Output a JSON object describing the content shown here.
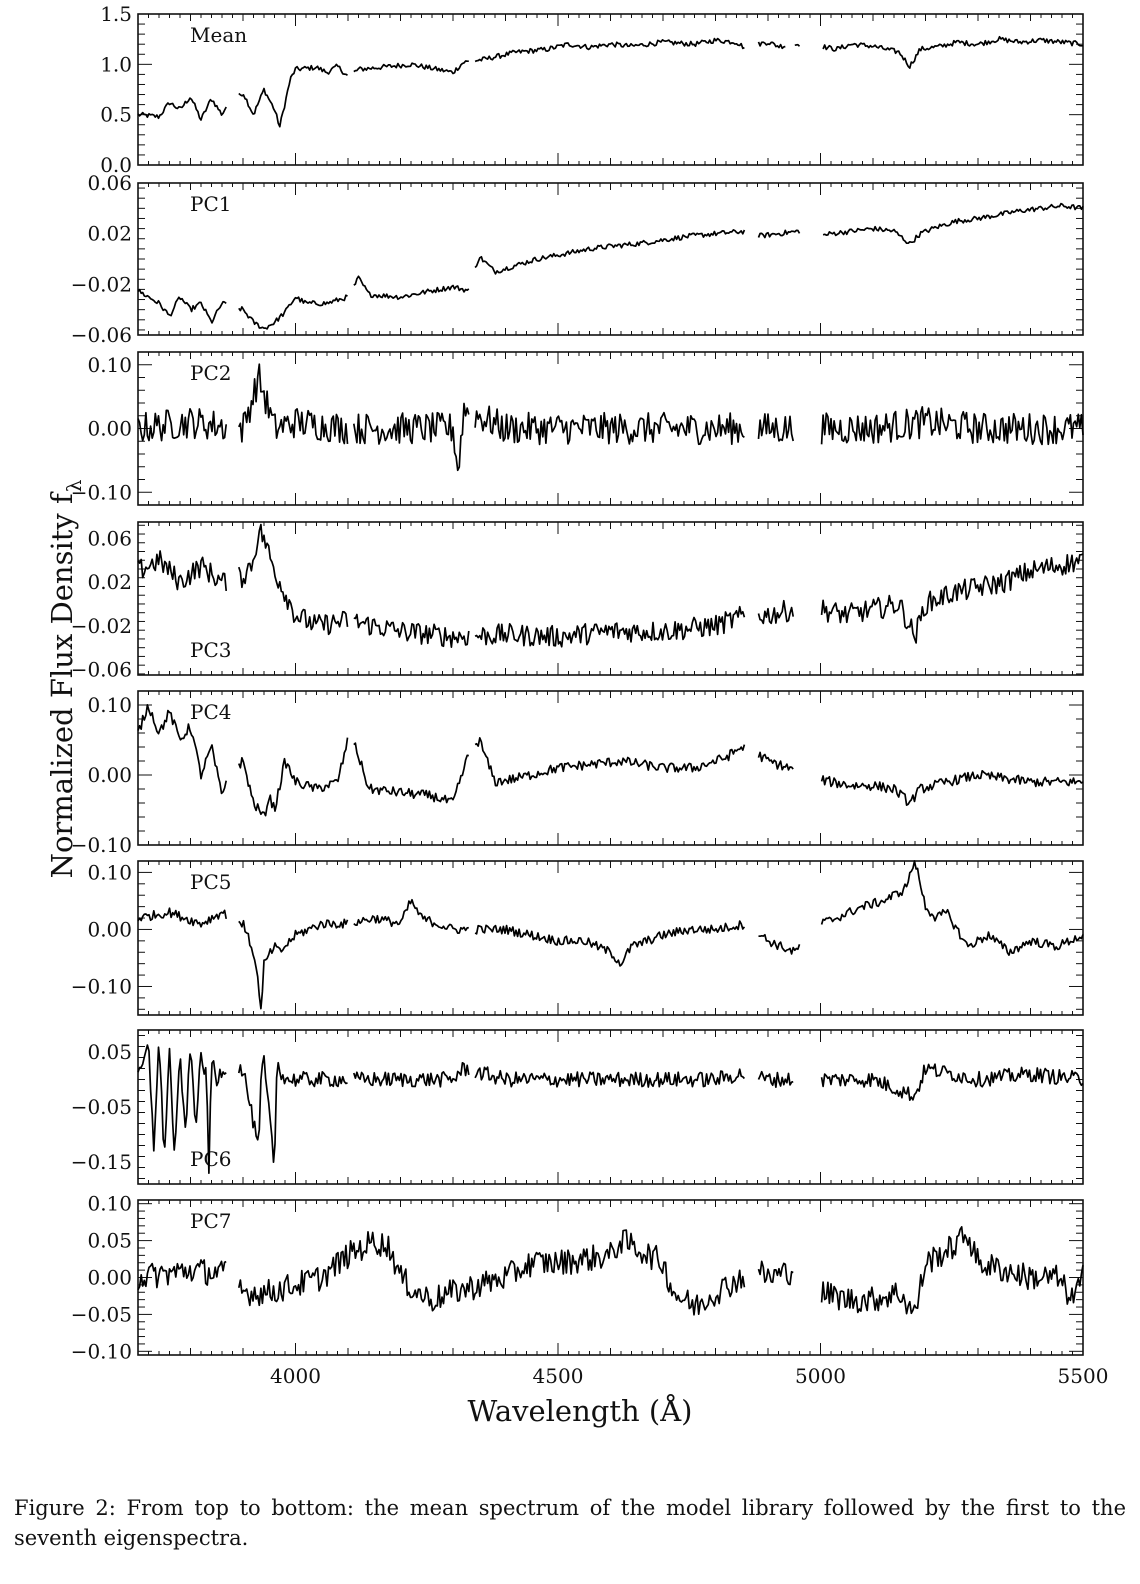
{
  "figure": {
    "xlabel": "Wavelength (Å)",
    "ylabel_main": "Normalized Flux Density f",
    "ylabel_sub": "λ",
    "x_ticks": [
      4000,
      4500,
      5000,
      5500
    ],
    "x_range": [
      3700,
      5500
    ],
    "caption": "Figure 2: From top to bottom: the mean spectrum of the model library followed by the first to the seventh eigenspectra."
  },
  "chart_data": [
    {
      "type": "line",
      "label": "Mean",
      "label_pos": "top-left",
      "ylim": [
        0.0,
        1.5
      ],
      "yticks": [
        {
          "v": 0.0,
          "t": "0.0"
        },
        {
          "v": 0.5,
          "t": "0.5"
        },
        {
          "v": 1.0,
          "t": "1.0"
        },
        {
          "v": 1.5,
          "t": "1.5"
        }
      ],
      "x": [
        3700,
        3740,
        3760,
        3780,
        3800,
        3820,
        3840,
        3860,
        3870,
        3900,
        3920,
        3940,
        3960,
        3970,
        3990,
        4000,
        4040,
        4060,
        4080,
        4100,
        4120,
        4180,
        4220,
        4300,
        4320,
        4360,
        4420,
        4480,
        4520,
        4560,
        4600,
        4640,
        4700,
        4760,
        4800,
        4840,
        4860,
        4880,
        4900,
        4920,
        4960,
        5000,
        5030,
        5060,
        5100,
        5150,
        5170,
        5190,
        5230,
        5260,
        5300,
        5340,
        5380,
        5420,
        5460,
        5500
      ],
      "y": [
        0.5,
        0.48,
        0.62,
        0.55,
        0.68,
        0.45,
        0.66,
        0.5,
        0.6,
        0.72,
        0.5,
        0.75,
        0.55,
        0.38,
        0.85,
        0.95,
        0.97,
        0.92,
        0.98,
        0.88,
        0.95,
        0.98,
        1.0,
        0.92,
        1.02,
        1.05,
        1.12,
        1.15,
        1.2,
        1.17,
        1.2,
        1.18,
        1.22,
        1.2,
        1.24,
        1.22,
        1.15,
        1.2,
        1.22,
        1.18,
        1.2,
        1.18,
        1.15,
        1.2,
        1.18,
        1.12,
        0.98,
        1.15,
        1.18,
        1.22,
        1.2,
        1.25,
        1.22,
        1.24,
        1.22,
        1.2
      ],
      "gaps": [
        [
          3870,
          3890
        ],
        [
          4100,
          4110
        ],
        [
          4330,
          4340
        ],
        [
          4855,
          4880
        ],
        [
          4935,
          4950
        ],
        [
          4960,
          5005
        ]
      ],
      "noise": 0.025
    },
    {
      "type": "line",
      "label": "PC1",
      "label_pos": "top-left",
      "ylim": [
        -0.06,
        0.06
      ],
      "yticks": [
        {
          "v": -0.06,
          "t": "−0.06"
        },
        {
          "v": -0.02,
          "t": "−0.02"
        },
        {
          "v": 0.02,
          "t": "0.02"
        },
        {
          "v": 0.06,
          "t": "0.06"
        }
      ],
      "x": [
        3700,
        3740,
        3760,
        3780,
        3800,
        3820,
        3840,
        3860,
        3900,
        3920,
        3940,
        3960,
        3980,
        4000,
        4020,
        4060,
        4100,
        4120,
        4140,
        4200,
        4260,
        4300,
        4330,
        4340,
        4350,
        4380,
        4420,
        4460,
        4500,
        4560,
        4600,
        4650,
        4700,
        4750,
        4800,
        4860,
        4880,
        4920,
        4960,
        5000,
        5020,
        5060,
        5100,
        5140,
        5170,
        5190,
        5220,
        5260,
        5300,
        5340,
        5380,
        5420,
        5460,
        5500
      ],
      "y": [
        -0.025,
        -0.035,
        -0.045,
        -0.03,
        -0.04,
        -0.035,
        -0.05,
        -0.035,
        -0.04,
        -0.05,
        -0.055,
        -0.05,
        -0.042,
        -0.03,
        -0.035,
        -0.035,
        -0.03,
        -0.015,
        -0.028,
        -0.03,
        -0.025,
        -0.022,
        -0.025,
        -0.01,
        0.002,
        -0.01,
        -0.005,
        0.0,
        0.003,
        0.008,
        0.01,
        0.012,
        0.015,
        0.018,
        0.02,
        0.022,
        0.018,
        0.02,
        0.022,
        0.018,
        0.02,
        0.022,
        0.024,
        0.022,
        0.012,
        0.02,
        0.025,
        0.03,
        0.032,
        0.035,
        0.038,
        0.04,
        0.042,
        0.04
      ],
      "gaps": [
        [
          3870,
          3890
        ],
        [
          4100,
          4110
        ],
        [
          4330,
          4340
        ],
        [
          4855,
          4880
        ],
        [
          4960,
          5005
        ]
      ],
      "noise": 0.002
    },
    {
      "type": "line",
      "label": "PC2",
      "label_pos": "top-left",
      "ylim": [
        -0.12,
        0.12
      ],
      "yticks": [
        {
          "v": -0.1,
          "t": "−0.10"
        },
        {
          "v": 0.0,
          "t": "0.00"
        },
        {
          "v": 0.1,
          "t": "0.10"
        }
      ],
      "x": [
        3700,
        3800,
        3900,
        3930,
        3960,
        4000,
        4100,
        4200,
        4300,
        4310,
        4320,
        4400,
        4500,
        4600,
        4700,
        4800,
        4860,
        4900,
        5000,
        5100,
        5200,
        5300,
        5400,
        5500
      ],
      "y": [
        0.0,
        0.01,
        0.0,
        0.08,
        0.0,
        0.01,
        0.0,
        0.0,
        0.0,
        -0.07,
        0.03,
        0.0,
        0.0,
        0.0,
        0.0,
        0.0,
        0.0,
        0.0,
        0.0,
        0.0,
        0.01,
        0.0,
        0.0,
        0.0
      ],
      "gaps": [
        [
          3870,
          3890
        ],
        [
          4100,
          4110
        ],
        [
          4330,
          4340
        ],
        [
          4855,
          4880
        ],
        [
          4950,
          5000
        ]
      ],
      "noise": 0.025
    },
    {
      "type": "line",
      "label": "PC3",
      "label_pos": "bottom-left",
      "ylim": [
        -0.065,
        0.075
      ],
      "yticks": [
        {
          "v": -0.06,
          "t": "−0.06"
        },
        {
          "v": -0.02,
          "t": "−0.02"
        },
        {
          "v": 0.02,
          "t": "0.02"
        },
        {
          "v": 0.06,
          "t": "0.06"
        }
      ],
      "x": [
        3700,
        3740,
        3780,
        3820,
        3860,
        3900,
        3920,
        3930,
        3940,
        3960,
        3980,
        4000,
        4040,
        4100,
        4200,
        4300,
        4400,
        4500,
        4600,
        4700,
        4800,
        4860,
        4900,
        4950,
        5000,
        5050,
        5100,
        5150,
        5180,
        5200,
        5250,
        5300,
        5350,
        5400,
        5450,
        5500
      ],
      "y": [
        0.03,
        0.04,
        0.02,
        0.035,
        0.02,
        0.025,
        0.04,
        0.068,
        0.06,
        0.03,
        0.01,
        -0.01,
        -0.02,
        -0.015,
        -0.025,
        -0.03,
        -0.028,
        -0.03,
        -0.025,
        -0.025,
        -0.02,
        -0.01,
        -0.01,
        -0.005,
        -0.005,
        -0.01,
        -0.005,
        0.0,
        -0.03,
        0.0,
        0.01,
        0.015,
        0.02,
        0.03,
        0.035,
        0.04
      ],
      "gaps": [
        [
          3870,
          3890
        ],
        [
          4100,
          4110
        ],
        [
          4330,
          4340
        ],
        [
          4855,
          4880
        ],
        [
          4950,
          5000
        ]
      ],
      "noise": 0.01
    },
    {
      "type": "line",
      "label": "PC4",
      "label_pos": "top-left",
      "ylim": [
        -0.1,
        0.12
      ],
      "yticks": [
        {
          "v": -0.1,
          "t": "−0.10"
        },
        {
          "v": 0.0,
          "t": "0.00"
        },
        {
          "v": 0.1,
          "t": "0.10"
        }
      ],
      "x": [
        3700,
        3720,
        3740,
        3760,
        3780,
        3800,
        3820,
        3840,
        3860,
        3870,
        3900,
        3920,
        3940,
        3950,
        3960,
        3980,
        4000,
        4040,
        4080,
        4100,
        4110,
        4140,
        4200,
        4260,
        4300,
        4330,
        4350,
        4380,
        4420,
        4500,
        4560,
        4620,
        4700,
        4760,
        4820,
        4850,
        4880,
        4900,
        4940,
        4960,
        5020,
        5060,
        5100,
        5140,
        5170,
        5190,
        5240,
        5300,
        5350,
        5400,
        5450,
        5500
      ],
      "y": [
        0.06,
        0.1,
        0.06,
        0.09,
        0.05,
        0.07,
        0.0,
        0.04,
        -0.03,
        0.0,
        0.02,
        -0.04,
        -0.06,
        -0.03,
        -0.05,
        0.02,
        -0.01,
        -0.02,
        -0.01,
        0.05,
        0.05,
        -0.02,
        -0.025,
        -0.03,
        -0.04,
        0.03,
        0.05,
        -0.01,
        -0.005,
        0.01,
        0.015,
        0.02,
        0.01,
        0.01,
        0.025,
        0.04,
        0.03,
        0.02,
        0.01,
        0.0,
        -0.01,
        -0.015,
        -0.015,
        -0.02,
        -0.04,
        -0.02,
        -0.01,
        0.0,
        -0.005,
        -0.01,
        -0.01,
        -0.01
      ],
      "gaps": [
        [
          3870,
          3890
        ],
        [
          4100,
          4110
        ],
        [
          4330,
          4340
        ],
        [
          4855,
          4880
        ],
        [
          4950,
          5000
        ]
      ],
      "noise": 0.007
    },
    {
      "type": "line",
      "label": "PC5",
      "label_pos": "top-left",
      "ylim": [
        -0.15,
        0.12
      ],
      "yticks": [
        {
          "v": -0.1,
          "t": "−0.10"
        },
        {
          "v": 0.0,
          "t": "0.00"
        },
        {
          "v": 0.1,
          "t": "0.10"
        }
      ],
      "x": [
        3700,
        3760,
        3820,
        3860,
        3900,
        3920,
        3930,
        3935,
        3940,
        3960,
        3970,
        4000,
        4050,
        4100,
        4150,
        4200,
        4220,
        4240,
        4300,
        4400,
        4450,
        4500,
        4550,
        4600,
        4620,
        4640,
        4700,
        4750,
        4800,
        4860,
        4900,
        4950,
        5000,
        5030,
        5080,
        5120,
        5160,
        5180,
        5200,
        5220,
        5240,
        5280,
        5320,
        5360,
        5400,
        5450,
        5500
      ],
      "y": [
        0.02,
        0.03,
        0.01,
        0.03,
        0.01,
        -0.04,
        -0.1,
        -0.15,
        -0.06,
        -0.03,
        -0.04,
        -0.01,
        0.01,
        0.01,
        0.02,
        0.01,
        0.05,
        0.02,
        0.0,
        0.0,
        -0.01,
        -0.02,
        -0.02,
        -0.04,
        -0.06,
        -0.03,
        -0.01,
        0.0,
        0.0,
        0.01,
        -0.02,
        -0.04,
        0.01,
        0.02,
        0.04,
        0.05,
        0.07,
        0.12,
        0.04,
        0.02,
        0.03,
        -0.03,
        -0.01,
        -0.04,
        -0.02,
        -0.03,
        -0.01
      ],
      "gaps": [
        [
          3870,
          3890
        ],
        [
          4100,
          4110
        ],
        [
          4330,
          4340
        ],
        [
          4855,
          4880
        ],
        [
          4960,
          5000
        ]
      ],
      "noise": 0.008
    },
    {
      "type": "line",
      "label": "PC6",
      "label_pos": "bottom-left",
      "ylim": [
        -0.19,
        0.09
      ],
      "yticks": [
        {
          "v": -0.15,
          "t": "−0.15"
        },
        {
          "v": -0.05,
          "t": "−0.05"
        },
        {
          "v": 0.05,
          "t": "0.05"
        }
      ],
      "x": [
        3700,
        3720,
        3730,
        3740,
        3750,
        3760,
        3770,
        3780,
        3790,
        3800,
        3810,
        3820,
        3830,
        3835,
        3840,
        3850,
        3860,
        3900,
        3930,
        3935,
        3940,
        3960,
        3965,
        3970,
        3980,
        4000,
        4100,
        4200,
        4300,
        4320,
        4400,
        4500,
        4600,
        4700,
        4800,
        4850,
        4900,
        5000,
        5100,
        5180,
        5200,
        5300,
        5400,
        5500
      ],
      "y": [
        0.0,
        0.06,
        -0.12,
        0.07,
        -0.14,
        0.05,
        -0.15,
        0.05,
        -0.1,
        0.06,
        -0.08,
        0.04,
        0.01,
        -0.17,
        0.04,
        0.0,
        0.02,
        0.02,
        -0.13,
        0.02,
        0.03,
        -0.16,
        0.04,
        0.02,
        0.0,
        0.0,
        0.0,
        0.0,
        0.0,
        0.02,
        0.0,
        0.0,
        0.0,
        0.0,
        0.0,
        0.01,
        0.0,
        0.0,
        0.0,
        -0.03,
        0.02,
        0.0,
        0.01,
        0.0
      ],
      "gaps": [
        [
          3870,
          3890
        ],
        [
          4100,
          4110
        ],
        [
          4330,
          4340
        ],
        [
          4855,
          4880
        ],
        [
          4950,
          5000
        ]
      ],
      "noise": 0.014
    },
    {
      "type": "line",
      "label": "PC7",
      "label_pos": "top-left",
      "ylim": [
        -0.105,
        0.105
      ],
      "yticks": [
        {
          "v": -0.1,
          "t": "−0.10"
        },
        {
          "v": -0.05,
          "t": "−0.05"
        },
        {
          "v": 0.0,
          "t": "0.00"
        },
        {
          "v": 0.05,
          "t": "0.05"
        },
        {
          "v": 0.1,
          "t": "0.10"
        }
      ],
      "x": [
        3700,
        3800,
        3870,
        3900,
        3950,
        4000,
        4050,
        4100,
        4150,
        4180,
        4200,
        4230,
        4260,
        4300,
        4350,
        4400,
        4450,
        4500,
        4550,
        4600,
        4620,
        4650,
        4700,
        4720,
        4760,
        4780,
        4800,
        4850,
        4880,
        4900,
        4950,
        5000,
        5050,
        5100,
        5150,
        5180,
        5200,
        5250,
        5280,
        5300,
        5350,
        5400,
        5450,
        5480,
        5500
      ],
      "y": [
        0.0,
        0.01,
        0.005,
        -0.02,
        -0.02,
        -0.01,
        0.0,
        0.03,
        0.05,
        0.04,
        0.0,
        -0.02,
        -0.03,
        -0.02,
        -0.01,
        0.0,
        0.02,
        0.02,
        0.025,
        0.03,
        0.05,
        0.04,
        0.02,
        -0.02,
        -0.04,
        -0.03,
        -0.02,
        0.0,
        0.01,
        0.0,
        0.01,
        -0.02,
        -0.03,
        -0.03,
        -0.02,
        -0.05,
        0.02,
        0.04,
        0.06,
        0.02,
        0.01,
        0.0,
        0.0,
        -0.03,
        0.0
      ],
      "gaps": [
        [
          3870,
          3890
        ],
        [
          4855,
          4880
        ],
        [
          4950,
          5000
        ]
      ],
      "noise": 0.018
    }
  ]
}
